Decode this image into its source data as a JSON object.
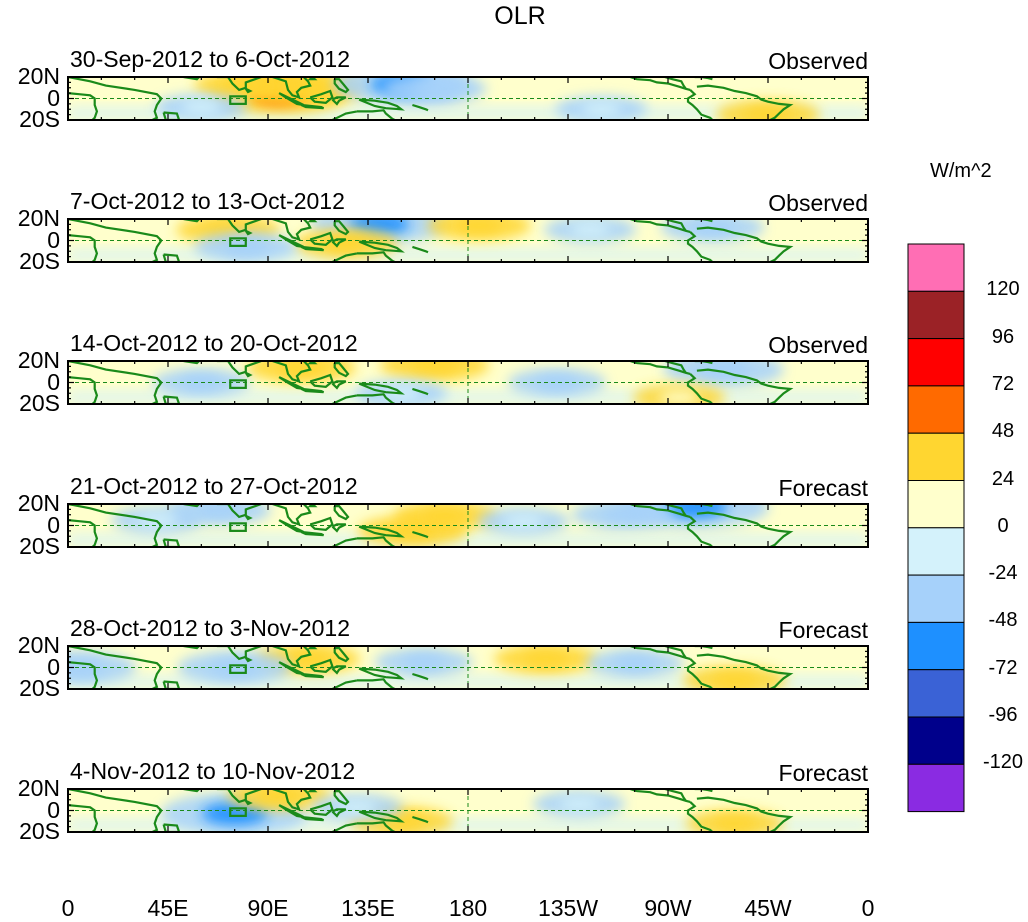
{
  "chart_data": {
    "type": "heatmap",
    "title": "OLR",
    "colorbar_title": "W/m^2",
    "x_tick_labels": [
      "0",
      "45E",
      "90E",
      "135E",
      "180",
      "135W",
      "90W",
      "45W",
      "0"
    ],
    "x_ticks_deg_east": [
      0,
      45,
      90,
      135,
      180,
      225,
      270,
      315,
      360
    ],
    "y_tick_labels": [
      "20N",
      "0",
      "20S"
    ],
    "ylim_deg": [
      -20,
      20
    ],
    "xlim_deg_east": [
      0,
      360
    ],
    "reference_lines": "dashed green at equator and 180",
    "levels": [
      120,
      96,
      72,
      48,
      24,
      0,
      -24,
      -48,
      -72,
      -96,
      -120
    ],
    "level_labels": [
      "120",
      "96",
      "72",
      "48",
      "24",
      "0",
      "-24",
      "-48",
      "-72",
      "-96",
      "-120"
    ],
    "level_colors": [
      "#ff6eb4",
      "#9b2226",
      "#ff0000",
      "#ff6a00",
      "#ffd630",
      "#ffffcc",
      "#d4f2fb",
      "#a6d1fa",
      "#1e90ff",
      "#3a62d6",
      "#00008b",
      "#8a2be2"
    ],
    "panels": [
      {
        "period": "30-Sep-2012 to 6-Oct-2012",
        "kind": "Observed",
        "anomalies": [
          {
            "lon": 95,
            "lat": 4,
            "value": 60
          },
          {
            "lon": 108,
            "lat": 10,
            "value": 40
          },
          {
            "lon": 80,
            "lat": 12,
            "value": 30
          },
          {
            "lon": 150,
            "lat": 13,
            "value": -60
          },
          {
            "lon": 165,
            "lat": 9,
            "value": -30
          },
          {
            "lon": 315,
            "lat": -15,
            "value": 30
          },
          {
            "lon": 60,
            "lat": -8,
            "value": -20
          },
          {
            "lon": 240,
            "lat": -10,
            "value": -20
          }
        ]
      },
      {
        "period": "7-Oct-2012 to 13-Oct-2012",
        "kind": "Observed",
        "anomalies": [
          {
            "lon": 140,
            "lat": 15,
            "value": -60
          },
          {
            "lon": 125,
            "lat": -3,
            "value": 30
          },
          {
            "lon": 72,
            "lat": 10,
            "value": 30
          },
          {
            "lon": 185,
            "lat": 14,
            "value": 30
          },
          {
            "lon": 80,
            "lat": -6,
            "value": -30
          },
          {
            "lon": 235,
            "lat": 10,
            "value": -20
          },
          {
            "lon": 290,
            "lat": 12,
            "value": -30
          }
        ]
      },
      {
        "period": "14-Oct-2012 to 20-Oct-2012",
        "kind": "Observed",
        "anomalies": [
          {
            "lon": 105,
            "lat": 14,
            "value": 35
          },
          {
            "lon": 165,
            "lat": 16,
            "value": 35
          },
          {
            "lon": 60,
            "lat": 0,
            "value": -25
          },
          {
            "lon": 295,
            "lat": 12,
            "value": -45
          },
          {
            "lon": 220,
            "lat": 0,
            "value": -25
          },
          {
            "lon": 150,
            "lat": -10,
            "value": -20
          },
          {
            "lon": 275,
            "lat": -14,
            "value": 20
          }
        ]
      },
      {
        "period": "21-Oct-2012 to 27-Oct-2012",
        "kind": "Forecast",
        "anomalies": [
          {
            "lon": 155,
            "lat": -5,
            "value": 35
          },
          {
            "lon": 170,
            "lat": 9,
            "value": 30
          },
          {
            "lon": 68,
            "lat": 14,
            "value": -30
          },
          {
            "lon": 282,
            "lat": 17,
            "value": -70
          },
          {
            "lon": 250,
            "lat": 10,
            "value": -30
          },
          {
            "lon": 205,
            "lat": 4,
            "value": -20
          },
          {
            "lon": 40,
            "lat": 5,
            "value": -20
          }
        ]
      },
      {
        "period": "28-Oct-2012 to 3-Nov-2012",
        "kind": "Forecast",
        "anomalies": [
          {
            "lon": 108,
            "lat": 8,
            "value": 30
          },
          {
            "lon": 300,
            "lat": -12,
            "value": 30
          },
          {
            "lon": 75,
            "lat": 0,
            "value": -40
          },
          {
            "lon": 5,
            "lat": 0,
            "value": -40
          },
          {
            "lon": 215,
            "lat": 8,
            "value": 30
          },
          {
            "lon": 160,
            "lat": 5,
            "value": -25
          },
          {
            "lon": 255,
            "lat": 4,
            "value": -25
          }
        ]
      },
      {
        "period": "4-Nov-2012 to 10-Nov-2012",
        "kind": "Forecast",
        "anomalies": [
          {
            "lon": 75,
            "lat": -3,
            "value": -70
          },
          {
            "lon": 95,
            "lat": 14,
            "value": 30
          },
          {
            "lon": 150,
            "lat": -10,
            "value": 30
          },
          {
            "lon": 300,
            "lat": -12,
            "value": 25
          },
          {
            "lon": 230,
            "lat": 6,
            "value": -20
          },
          {
            "lon": 130,
            "lat": 3,
            "value": -20
          }
        ]
      }
    ]
  }
}
